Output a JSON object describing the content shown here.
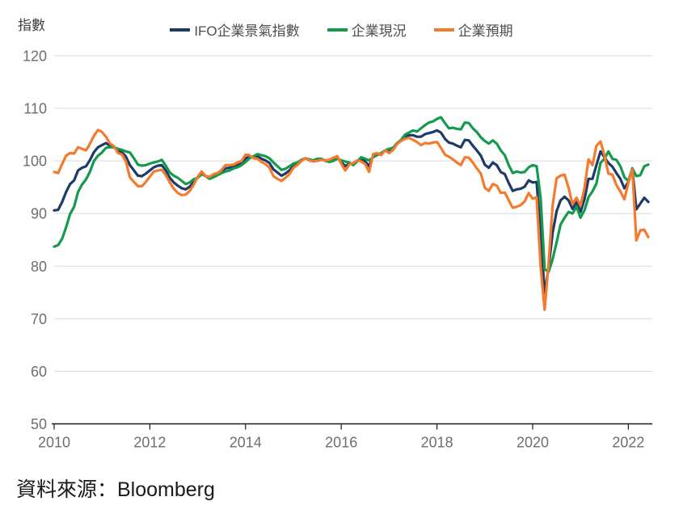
{
  "header": {
    "y_axis_title": "指數"
  },
  "footer": {
    "source": "資料來源：Bloomberg"
  },
  "colors": {
    "climate": "#1E3A68",
    "situation": "#149A4D",
    "expectations": "#F57A2D",
    "gridline": "#D9D9D9",
    "axis": "#1a1a1a",
    "tick_label": "#6e6e6e"
  },
  "chart_data": {
    "type": "line",
    "title": "",
    "xlabel": "",
    "ylabel": "指數",
    "ylim": [
      50,
      120
    ],
    "y_ticks": [
      120,
      110,
      100,
      90,
      80,
      70,
      60,
      50
    ],
    "x_tick_labels": [
      "2010",
      "2012",
      "2014",
      "2016",
      "2018",
      "2020",
      "2022"
    ],
    "x_unit": "monthly",
    "x_range": "2010-01 to 2022-06",
    "grid": "horizontal-only",
    "legend_position": "top-center",
    "series": [
      {
        "name": "IFO企業景氣指數",
        "color": "#1E3A68",
        "values": [
          90.6,
          90.7,
          92.2,
          94.1,
          95.6,
          96.3,
          98.2,
          98.7,
          99.0,
          100.2,
          101.7,
          102.6,
          103.0,
          103.4,
          102.9,
          102.6,
          101.9,
          101.7,
          100.8,
          99.2,
          98.2,
          97.2,
          97.1,
          97.6,
          98.2,
          98.8,
          99.1,
          99.2,
          98.2,
          96.8,
          95.9,
          95.3,
          94.8,
          94.6,
          95.1,
          96.0,
          96.9,
          97.7,
          97.1,
          96.8,
          97.2,
          97.5,
          98.0,
          98.6,
          98.7,
          98.9,
          99.3,
          99.6,
          100.5,
          100.8,
          100.7,
          100.9,
          100.4,
          100.1,
          99.6,
          98.4,
          97.8,
          97.2,
          97.6,
          98.2,
          99.1,
          99.4,
          100.1,
          100.5,
          100.2,
          100.0,
          100.2,
          100.3,
          100.1,
          100.0,
          100.3,
          100.7,
          99.8,
          99.0,
          99.5,
          99.4,
          100.0,
          100.3,
          99.9,
          99.0,
          101.0,
          101.3,
          101.3,
          102.0,
          101.9,
          102.3,
          103.3,
          103.9,
          104.6,
          104.9,
          104.9,
          104.6,
          104.6,
          105.1,
          105.3,
          105.5,
          105.8,
          105.4,
          104.2,
          103.5,
          103.3,
          102.9,
          102.6,
          104.0,
          103.9,
          102.9,
          102.0,
          101.0,
          99.3,
          98.7,
          99.7,
          99.2,
          97.9,
          97.5,
          95.8,
          94.3,
          94.6,
          94.7,
          95.1,
          96.3,
          95.9,
          96.0,
          86.1,
          74.8,
          79.7,
          86.3,
          90.4,
          92.5,
          93.2,
          92.5,
          90.9,
          92.2,
          90.3,
          92.7,
          96.6,
          96.6,
          99.2,
          101.8,
          100.7,
          99.6,
          98.9,
          97.7,
          96.6,
          94.8,
          96.0,
          98.5,
          90.8,
          91.9,
          93.0,
          92.2
        ]
      },
      {
        "name": "企業現況",
        "color": "#149A4D",
        "values": [
          83.7,
          84.0,
          85.2,
          87.4,
          89.9,
          91.3,
          94.1,
          95.5,
          96.5,
          98.0,
          100.0,
          101.0,
          101.6,
          102.5,
          102.6,
          102.6,
          102.3,
          102.1,
          101.8,
          101.6,
          100.5,
          99.3,
          99.1,
          99.2,
          99.5,
          99.7,
          99.9,
          100.2,
          99.1,
          97.8,
          97.2,
          96.8,
          96.2,
          95.6,
          95.9,
          96.5,
          96.8,
          97.5,
          97.1,
          96.6,
          96.9,
          97.3,
          97.7,
          98.0,
          98.2,
          98.6,
          98.8,
          99.2,
          99.8,
          100.5,
          100.9,
          101.3,
          101.1,
          100.9,
          100.5,
          99.7,
          99.0,
          98.3,
          98.5,
          99.0,
          99.5,
          99.7,
          100.2,
          100.5,
          100.3,
          100.1,
          100.4,
          100.4,
          100.0,
          99.8,
          100.0,
          100.4,
          100.1,
          99.9,
          99.7,
          99.2,
          99.9,
          100.7,
          100.4,
          100.1,
          100.7,
          101.1,
          101.5,
          102.0,
          102.3,
          102.5,
          103.4,
          104.0,
          105.0,
          105.4,
          105.8,
          105.6,
          106.2,
          106.8,
          107.3,
          107.5,
          108.0,
          108.3,
          107.2,
          106.2,
          106.3,
          106.1,
          106.0,
          107.3,
          107.2,
          106.2,
          105.5,
          104.5,
          103.8,
          103.3,
          103.9,
          103.3,
          102.0,
          101.1,
          99.2,
          97.7,
          98.0,
          97.8,
          97.9,
          98.8,
          99.2,
          99.0,
          92.9,
          79.4,
          78.9,
          81.3,
          84.5,
          87.9,
          89.2,
          90.3,
          90.0,
          91.3,
          89.2,
          90.6,
          93.1,
          94.2,
          95.7,
          99.6,
          100.4,
          101.8,
          100.4,
          100.2,
          99.0,
          96.9,
          96.2,
          98.6,
          97.1,
          97.3,
          99.0,
          99.3
        ]
      },
      {
        "name": "企業預期",
        "color": "#F57A2D",
        "values": [
          97.9,
          97.7,
          99.4,
          101.0,
          101.5,
          101.4,
          102.6,
          102.3,
          102.0,
          103.3,
          104.8,
          105.9,
          105.5,
          104.6,
          103.3,
          102.8,
          101.5,
          101.2,
          99.9,
          96.9,
          96.0,
          95.2,
          95.2,
          96.0,
          97.0,
          98.0,
          98.2,
          98.3,
          97.3,
          95.9,
          94.7,
          93.9,
          93.5,
          93.6,
          94.3,
          95.5,
          97.0,
          98.0,
          97.1,
          97.0,
          97.5,
          97.7,
          98.3,
          99.2,
          99.2,
          99.3,
          99.7,
          100.0,
          101.2,
          101.1,
          100.5,
          100.4,
          99.8,
          99.4,
          98.7,
          97.1,
          96.6,
          96.2,
          96.8,
          97.5,
          98.7,
          99.2,
          100.0,
          100.5,
          100.1,
          99.9,
          100.0,
          100.2,
          100.1,
          100.2,
          100.6,
          100.9,
          99.5,
          98.2,
          99.3,
          99.6,
          100.1,
          99.9,
          99.4,
          97.9,
          101.3,
          101.5,
          101.1,
          102.0,
          101.5,
          102.1,
          103.2,
          103.8,
          104.2,
          104.4,
          104.0,
          103.6,
          103.0,
          103.4,
          103.3,
          103.5,
          103.6,
          102.5,
          101.2,
          100.8,
          100.3,
          99.7,
          99.2,
          100.7,
          100.6,
          99.7,
          98.6,
          97.6,
          94.9,
          94.3,
          95.6,
          95.3,
          93.9,
          94.0,
          92.5,
          91.1,
          91.3,
          91.6,
          92.3,
          93.9,
          92.8,
          93.1,
          79.8,
          71.7,
          80.5,
          91.5,
          96.7,
          97.2,
          97.4,
          94.9,
          91.8,
          93.0,
          91.5,
          94.8,
          100.3,
          99.2,
          102.9,
          103.7,
          101.1,
          97.6,
          97.4,
          95.4,
          94.2,
          92.7,
          95.8,
          98.4,
          84.9,
          86.8,
          86.9,
          85.5
        ]
      }
    ]
  }
}
